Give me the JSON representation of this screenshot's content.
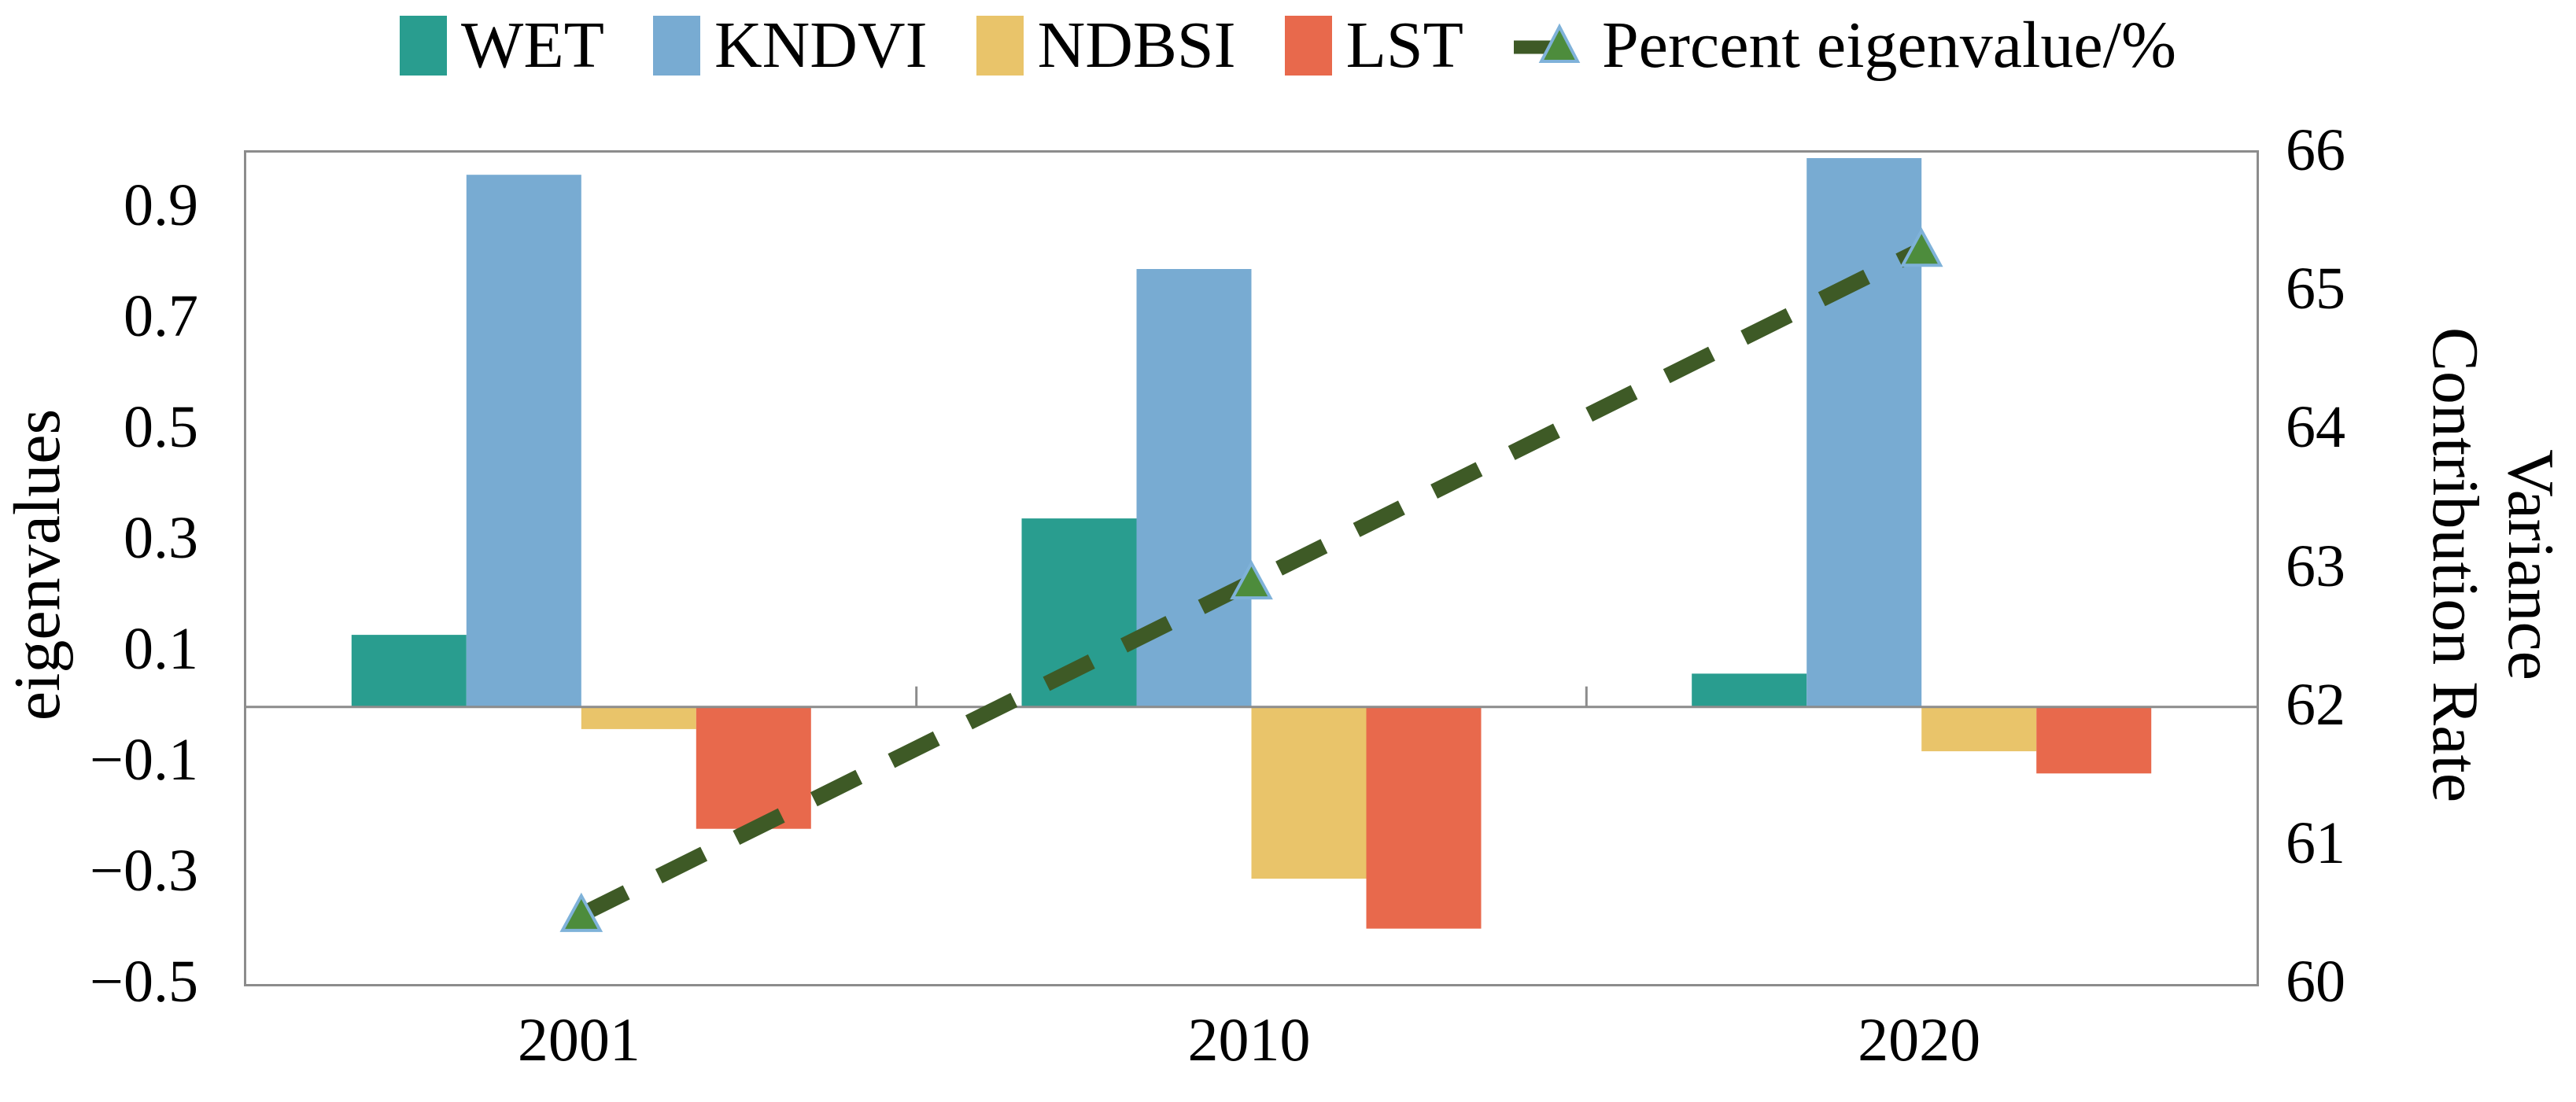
{
  "chart_data": {
    "type": "bar",
    "overlay": "dashed line with triangle markers on right axis",
    "title": "",
    "categories": [
      "2001",
      "2010",
      "2020"
    ],
    "bar_series": [
      {
        "name": "WET",
        "color": "#299D8F",
        "values": [
          0.13,
          0.34,
          0.06
        ]
      },
      {
        "name": "KNDVI",
        "color": "#78ABD2",
        "values": [
          0.96,
          0.79,
          0.99
        ]
      },
      {
        "name": "NDBSI",
        "color": "#E9C46A",
        "values": [
          -0.04,
          -0.31,
          -0.08
        ]
      },
      {
        "name": "LST",
        "color": "#E8694C",
        "values": [
          -0.22,
          -0.4,
          -0.12
        ]
      }
    ],
    "line_series": {
      "name": "Percent eigenvalue/%",
      "axis": "right",
      "values": [
        60.5,
        62.9,
        65.3
      ],
      "line_color": "#3E5A26",
      "line_style": "dashed",
      "marker": "triangle-up",
      "marker_fill": "#4D8C3C",
      "marker_edge": "#7FB2D9"
    },
    "left_axis": {
      "label": "eigenvalues",
      "min": -0.5,
      "max": 1.0,
      "ticks": [
        {
          "v": 0.9,
          "label": "0.9"
        },
        {
          "v": 0.7,
          "label": "0.7"
        },
        {
          "v": 0.5,
          "label": "0.5"
        },
        {
          "v": 0.3,
          "label": "0.3"
        },
        {
          "v": 0.1,
          "label": "0.1"
        },
        {
          "v": -0.1,
          "label": "−0.1"
        },
        {
          "v": -0.3,
          "label": "−0.3"
        },
        {
          "v": -0.5,
          "label": "−0.5"
        }
      ]
    },
    "right_axis": {
      "label_line1": "Variance",
      "label_line2": "Contribution Rate",
      "min": 60,
      "max": 66,
      "ticks": [
        {
          "v": 66,
          "label": "66"
        },
        {
          "v": 65,
          "label": "65"
        },
        {
          "v": 64,
          "label": "64"
        },
        {
          "v": 63,
          "label": "63"
        },
        {
          "v": 62,
          "label": "62"
        },
        {
          "v": 61,
          "label": "61"
        },
        {
          "v": 60,
          "label": "60"
        }
      ]
    },
    "x_axis": {
      "tick_labels": [
        "2001",
        "2010",
        "2020"
      ]
    },
    "legend_position": "top",
    "grid": false,
    "zero_line": true,
    "axis_color": "#8C8C8C",
    "text_color": "#000000",
    "background": "#FFFFFF"
  }
}
